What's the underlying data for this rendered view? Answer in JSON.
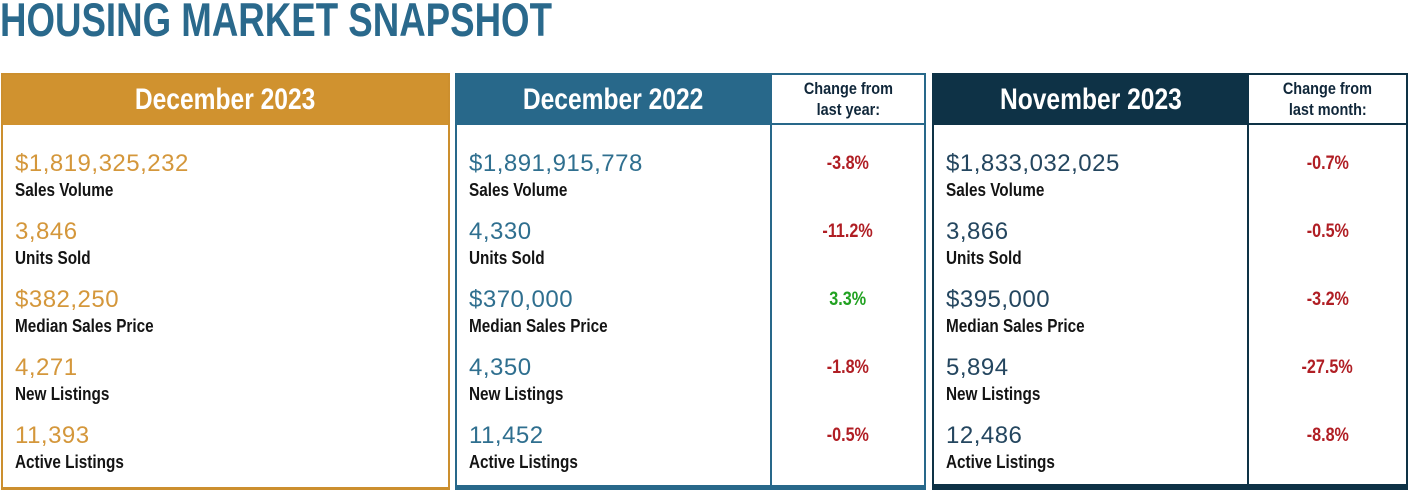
{
  "chart_data": {
    "type": "table",
    "title": "HOUSING MARKET SNAPSHOT",
    "metrics": [
      "Sales Volume",
      "Units Sold",
      "Median Sales Price",
      "New Listings",
      "Active Listings"
    ],
    "columns": [
      {
        "period": "December 2023",
        "values": [
          "$1,819,325,232",
          "3,846",
          "$382,250",
          "4,271",
          "11,393"
        ]
      },
      {
        "period": "December 2022",
        "change_label_line1": "Change from",
        "change_label_line2": "last year:",
        "values": [
          "$1,891,915,778",
          "4,330",
          "$370,000",
          "4,350",
          "11,452"
        ],
        "changes": [
          {
            "value": "-3.8%",
            "direction": "down"
          },
          {
            "value": "-11.2%",
            "direction": "down"
          },
          {
            "value": "3.3%",
            "direction": "up"
          },
          {
            "value": "-1.8%",
            "direction": "down"
          },
          {
            "value": "-0.5%",
            "direction": "down"
          }
        ]
      },
      {
        "period": "November 2023",
        "change_label_line1": "Change from",
        "change_label_line2": "last month:",
        "values": [
          "$1,833,032,025",
          "3,866",
          "$395,000",
          "5,894",
          "12,486"
        ],
        "changes": [
          {
            "value": "-0.7%",
            "direction": "down"
          },
          {
            "value": "-0.5%",
            "direction": "down"
          },
          {
            "value": "-3.2%",
            "direction": "down"
          },
          {
            "value": "-27.5%",
            "direction": "down"
          },
          {
            "value": "-8.8%",
            "direction": "down"
          }
        ]
      }
    ]
  },
  "colors": {
    "title": "#2A698C",
    "gold": "#D0922F",
    "gold_value": "#D4973B",
    "teal": "#28688A",
    "teal_value": "#2F6F8F",
    "navy": "#0E3246",
    "navy_value": "#24465F",
    "negative": "#B01E24",
    "positive": "#21A121",
    "label_text": "#141414"
  }
}
